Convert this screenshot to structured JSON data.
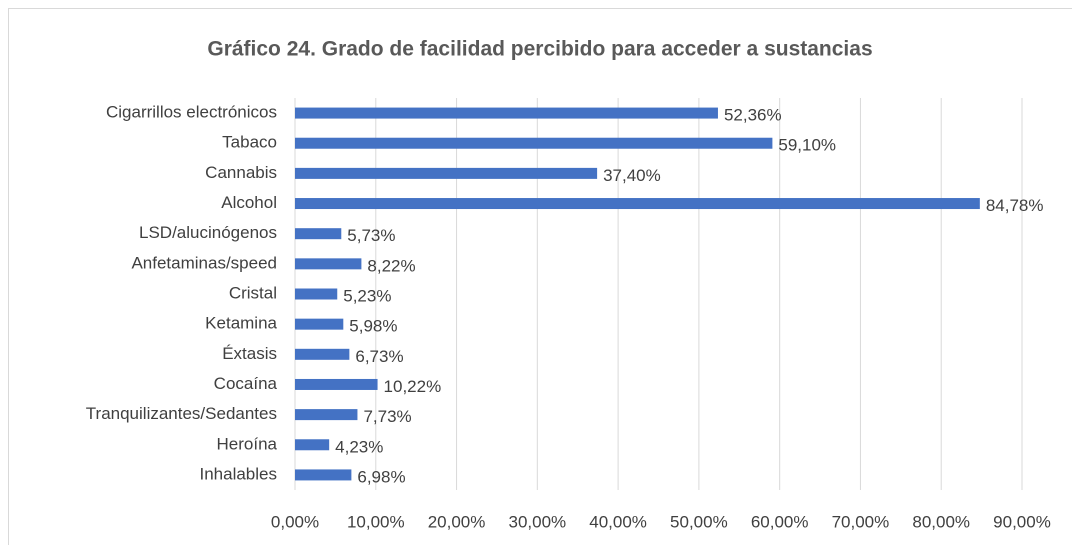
{
  "chart_data": {
    "type": "bar",
    "orientation": "horizontal",
    "title": "Gráfico 24. Grado de facilidad percibido para acceder a sustancias",
    "categories": [
      "Cigarrillos electrónicos",
      "Tabaco",
      "Cannabis",
      "Alcohol",
      "LSD/alucinógenos",
      "Anfetaminas/speed",
      "Cristal",
      "Ketamina",
      "Éxtasis",
      "Cocaína",
      "Tranquilizantes/Sedantes",
      "Heroína",
      "Inhalables"
    ],
    "values": [
      52.36,
      59.1,
      37.4,
      84.78,
      5.73,
      8.22,
      5.23,
      5.98,
      6.73,
      10.22,
      7.73,
      4.23,
      6.98
    ],
    "value_labels": [
      "52,36%",
      "59,10%",
      "37,40%",
      "84,78%",
      "5,73%",
      "8,22%",
      "5,23%",
      "5,98%",
      "6,73%",
      "10,22%",
      "7,73%",
      "4,23%",
      "6,98%"
    ],
    "color": "#4472c4",
    "xlim": [
      0,
      90
    ],
    "xticks": [
      {
        "value": 0,
        "label": "0,00%"
      },
      {
        "value": 10,
        "label": "10,00%"
      },
      {
        "value": 20,
        "label": "20,00%"
      },
      {
        "value": 30,
        "label": "30,00%"
      },
      {
        "value": 40,
        "label": "40,00%"
      },
      {
        "value": 50,
        "label": "50,00%"
      },
      {
        "value": 60,
        "label": "60,00%"
      },
      {
        "value": 70,
        "label": "70,00%"
      },
      {
        "value": 80,
        "label": "80,00%"
      },
      {
        "value": 90,
        "label": "90,00%"
      }
    ],
    "grid": true
  }
}
